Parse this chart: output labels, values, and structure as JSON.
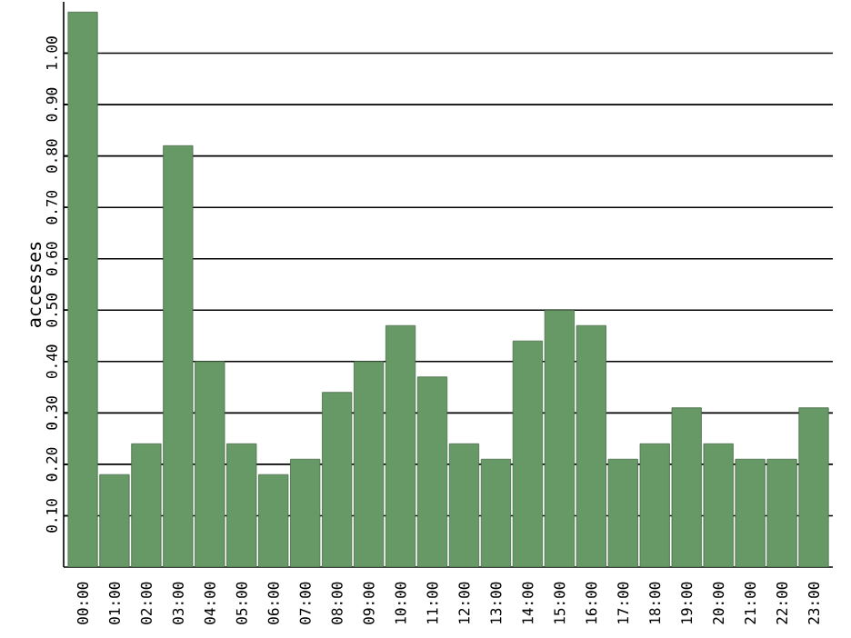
{
  "chart_data": {
    "type": "bar",
    "ylabel": "accesses",
    "categories": [
      "00:00",
      "01:00",
      "02:00",
      "03:00",
      "04:00",
      "05:00",
      "06:00",
      "07:00",
      "08:00",
      "09:00",
      "10:00",
      "11:00",
      "12:00",
      "13:00",
      "14:00",
      "15:00",
      "16:00",
      "17:00",
      "18:00",
      "19:00",
      "20:00",
      "21:00",
      "22:00",
      "23:00"
    ],
    "values": [
      1.08,
      0.18,
      0.24,
      0.82,
      0.4,
      0.24,
      0.18,
      0.21,
      0.34,
      0.4,
      0.47,
      0.37,
      0.24,
      0.21,
      0.44,
      0.5,
      0.47,
      0.21,
      0.24,
      0.31,
      0.24,
      0.21,
      0.21,
      0.31
    ],
    "color": "#669966",
    "ylim": [
      0,
      1.1
    ],
    "yticks": [
      {
        "value": 0.1,
        "label": "0.10"
      },
      {
        "value": 0.2,
        "label": "0.20"
      },
      {
        "value": 0.3,
        "label": "0.30"
      },
      {
        "value": 0.4,
        "label": "0.40"
      },
      {
        "value": 0.5,
        "label": "0.50"
      },
      {
        "value": 0.6,
        "label": "0.60"
      },
      {
        "value": 0.7,
        "label": "0.70"
      },
      {
        "value": 0.8,
        "label": "0.80"
      },
      {
        "value": 0.9,
        "label": "0.90"
      },
      {
        "value": 1.0,
        "label": "1.00"
      }
    ],
    "grid": "y"
  }
}
